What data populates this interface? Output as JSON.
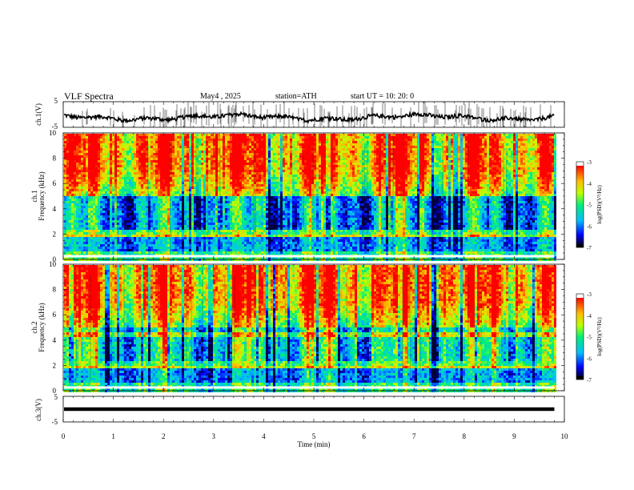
{
  "header": {
    "title": "VLF  Spectra",
    "date": "May4  , 2025",
    "station": "station=ATH",
    "start": "start  UT  =    10: 20: 0"
  },
  "chart_data": [
    {
      "type": "line",
      "name": "ch1-waveform",
      "ylabel": "ch.1(V)",
      "ylim": [
        -5,
        5
      ],
      "yticks": [
        "5",
        "-5"
      ],
      "xlim": [
        0,
        10
      ]
    },
    {
      "type": "heatmap",
      "name": "ch1-spectrogram",
      "ylabel": "ch.1\nFrequency (kHz)",
      "ylim": [
        0,
        10
      ],
      "yticks": [
        "0",
        "2",
        "4",
        "6",
        "8",
        "10"
      ],
      "xlim": [
        0,
        10
      ],
      "colorbar": {
        "label": "log(PSD)(V²/Hz)",
        "range": [
          -7,
          -3
        ],
        "ticks": [
          "-3",
          "-4",
          "-5",
          "-6",
          "-7"
        ]
      }
    },
    {
      "type": "heatmap",
      "name": "ch2-spectrogram",
      "ylabel": "ch.2\nFrequency (kHz)",
      "ylim": [
        0,
        10
      ],
      "yticks": [
        "0",
        "2",
        "4",
        "6",
        "8",
        "10"
      ],
      "xlim": [
        0,
        10
      ],
      "colorbar": {
        "label": "log(PSD)(V²/Hz)",
        "range": [
          -7,
          -3
        ],
        "ticks": [
          "-3",
          "-4",
          "-5",
          "-6",
          "-7"
        ]
      }
    },
    {
      "type": "line",
      "name": "ch3-waveform",
      "ylabel": "ch.3(V)",
      "ylim": [
        -5,
        5
      ],
      "yticks": [
        "5",
        "-5"
      ],
      "xlim": [
        0,
        10
      ],
      "xlabel": "Time  (min)",
      "xticks": [
        "0",
        "1",
        "2",
        "3",
        "4",
        "5",
        "6",
        "7",
        "8",
        "9",
        "10"
      ],
      "data_end_min": 9.8
    }
  ],
  "colors": {
    "spectrum": [
      "#000000",
      "#0000ff",
      "#00c0ff",
      "#00ff80",
      "#c0ff00",
      "#ffc000",
      "#ff0000",
      "#ffffff"
    ]
  }
}
